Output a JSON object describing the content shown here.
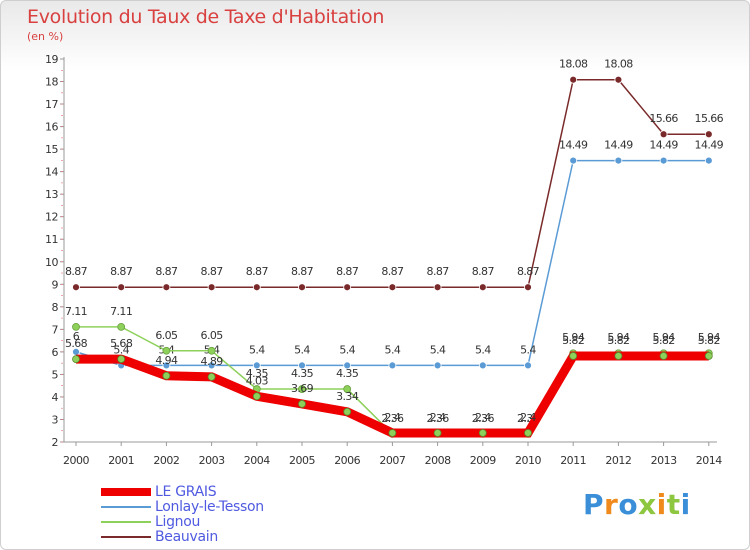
{
  "title": "Evolution du Taux de Taxe d'Habitation",
  "unit_label": "(en %)",
  "logo_text": "Proxiti",
  "colors": {
    "title": "#d94040",
    "axis": "#999999",
    "legend_text": "#4f5ae0"
  },
  "chart_data": {
    "type": "line",
    "x": [
      "2000",
      "2001",
      "2002",
      "2003",
      "2004",
      "2005",
      "2006",
      "2007",
      "2008",
      "2009",
      "2010",
      "2011",
      "2012",
      "2013",
      "2014"
    ],
    "ylim": [
      2,
      19
    ],
    "yticks": [
      2,
      3,
      4,
      5,
      6,
      7,
      8,
      9,
      10,
      11,
      12,
      13,
      14,
      15,
      16,
      17,
      18,
      19
    ],
    "grid": false,
    "legend_position": "bottom-left",
    "series": [
      {
        "name": "Beauvain",
        "color": "#7a2a2a",
        "values": [
          8.87,
          8.87,
          8.87,
          8.87,
          8.87,
          8.87,
          8.87,
          8.87,
          8.87,
          8.87,
          8.87,
          18.08,
          18.08,
          15.66,
          15.66
        ],
        "labels": [
          "8.87",
          "8.87",
          "8.87",
          "8.87",
          "8.87",
          "8.87",
          "8.87",
          "8.87",
          "8.87",
          "8.87",
          "8.87",
          "18.08",
          "18.08",
          "15.66",
          "15.66"
        ]
      },
      {
        "name": "Lonlay-le-Tesson",
        "color": "#5b9bd5",
        "values": [
          6.0,
          5.4,
          5.4,
          5.4,
          5.4,
          5.4,
          5.4,
          5.4,
          5.4,
          5.4,
          5.4,
          14.49,
          14.49,
          14.49,
          14.49
        ],
        "labels": [
          "6",
          "5.4",
          "5.4",
          "5.4",
          "5.4",
          "5.4",
          "5.4",
          "5.4",
          "5.4",
          "5.4",
          "5.4",
          "14.49",
          "14.49",
          "14.49",
          "14.49"
        ]
      },
      {
        "name": "Lignou",
        "color": "#8dd05a",
        "values": [
          7.11,
          7.11,
          6.05,
          6.05,
          4.35,
          4.35,
          4.35,
          2.36,
          2.36,
          2.36,
          2.36,
          5.94,
          5.94,
          5.94,
          5.94
        ],
        "labels": [
          "7.11",
          "7.11",
          "6.05",
          "6.05",
          "4.35",
          "4.35",
          "4.35",
          "2.36",
          "2.36",
          "2.36",
          "2.36",
          "5.94",
          "5.94",
          "5.94",
          "5.94"
        ]
      },
      {
        "name": "LE GRAIS",
        "color": "#ee0000",
        "values": [
          5.68,
          5.68,
          4.94,
          4.89,
          4.03,
          3.69,
          3.34,
          2.4,
          2.4,
          2.4,
          2.4,
          5.82,
          5.82,
          5.82,
          5.82
        ],
        "labels": [
          "5.68",
          "5.68",
          "4.94",
          "4.89",
          "4.03",
          "3.69",
          "3.34",
          "2.4",
          "2.4",
          "2.4",
          "2.4",
          "5.82",
          "5.82",
          "5.82",
          "5.82"
        ]
      }
    ],
    "legend": [
      "LE GRAIS",
      "Lonlay-le-Tesson",
      "Lignou",
      "Beauvain"
    ]
  }
}
